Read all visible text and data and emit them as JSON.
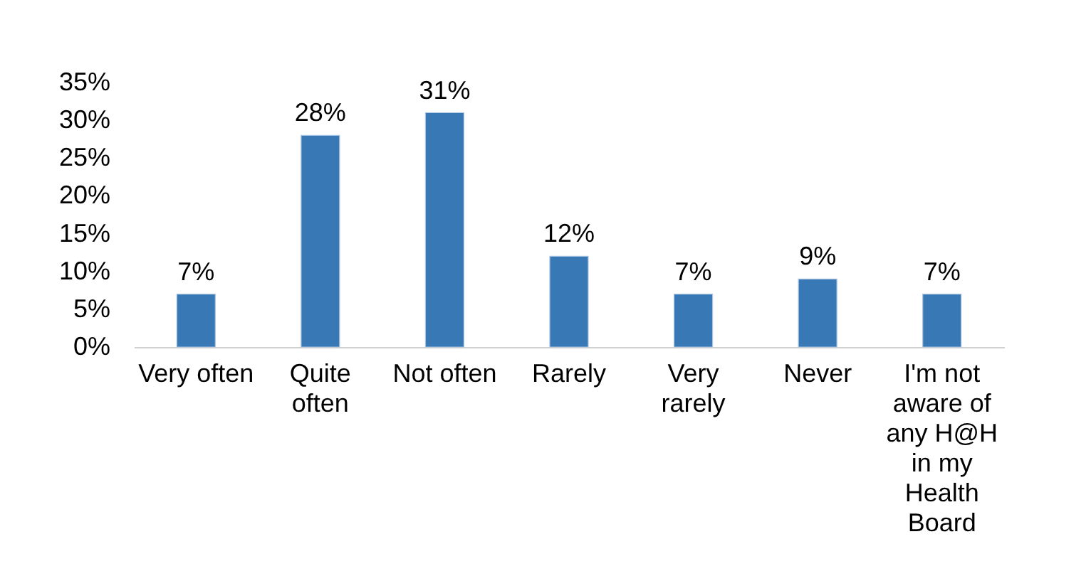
{
  "chart_data": {
    "type": "bar",
    "categories": [
      "Very often",
      "Quite often",
      "Not often",
      "Rarely",
      "Very rarely",
      "Never",
      "I'm not aware of any H@H in my Health Board"
    ],
    "values": [
      7,
      28,
      31,
      12,
      7,
      9,
      7
    ],
    "value_labels": [
      "7%",
      "28%",
      "31%",
      "12%",
      "7%",
      "9%",
      "7%"
    ],
    "color": "#3878b5",
    "ylim": [
      0,
      35
    ],
    "yticks": [
      {
        "value": 0,
        "label": "0%"
      },
      {
        "value": 5,
        "label": "5%"
      },
      {
        "value": 10,
        "label": "10%"
      },
      {
        "value": 15,
        "label": "15%"
      },
      {
        "value": 20,
        "label": "20%"
      },
      {
        "value": 25,
        "label": "25%"
      },
      {
        "value": 30,
        "label": "30%"
      },
      {
        "value": 35,
        "label": "35%"
      }
    ]
  }
}
